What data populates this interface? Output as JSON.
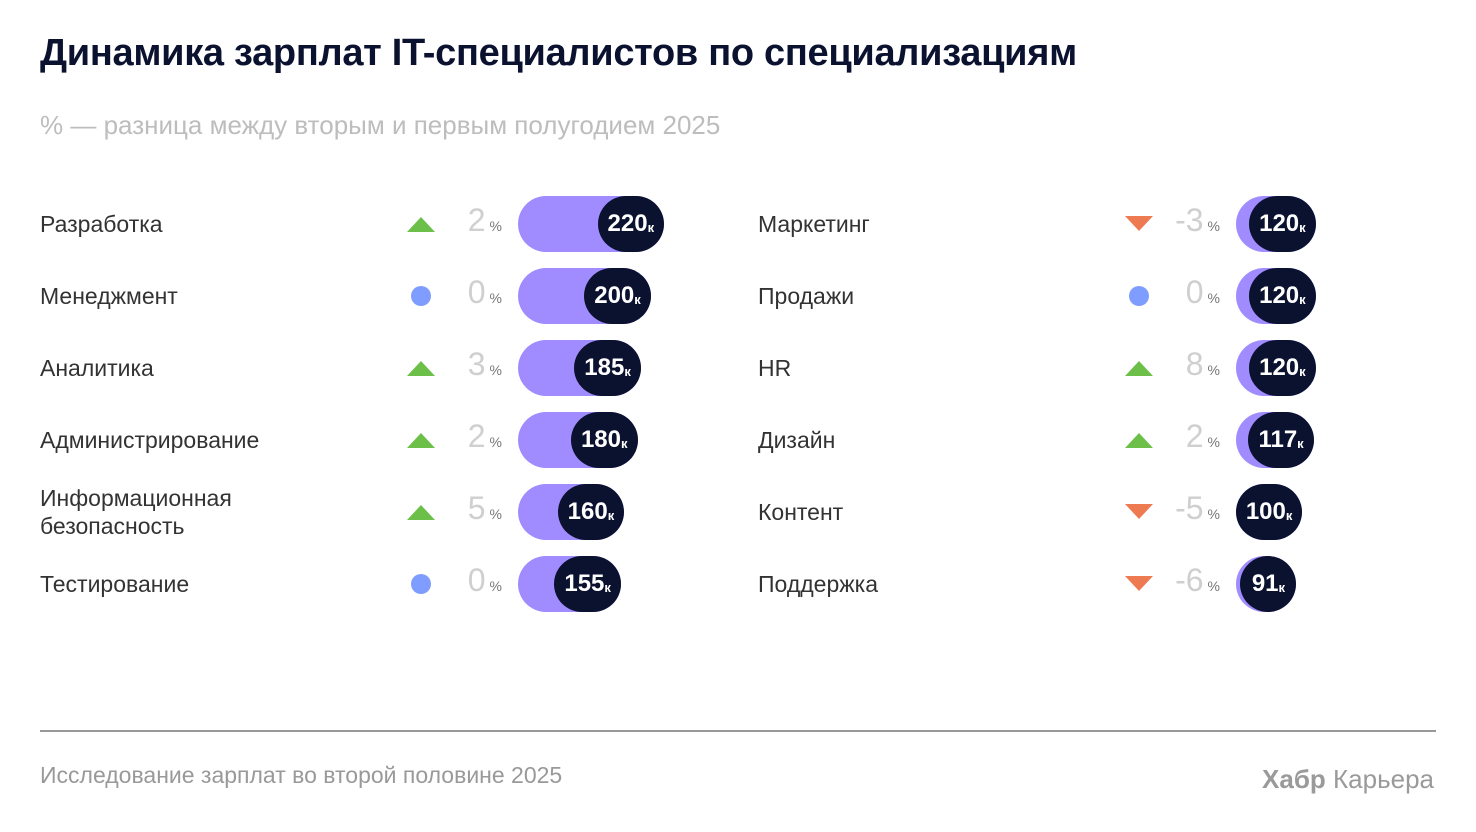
{
  "title": "Динамика зарплат IT-специалистов по специализациям",
  "subtitle": "% — разница между вторым и первым полугодием 2025",
  "footer": "Исследование зарплат во второй половине 2025",
  "logo": {
    "bold": "Хабр",
    "regular": "Карьера"
  },
  "colors": {
    "bar": "#a08bff",
    "pill": "#0b1230",
    "up": "#6cc04a",
    "down": "#ee7a52",
    "flat": "#7f9cff"
  },
  "chart_data": {
    "type": "bar",
    "value_suffix": "к",
    "pct_suffix": "%",
    "columns": [
      [
        {
          "name": "Разработка",
          "change": 2,
          "trend": "up",
          "value": 220
        },
        {
          "name": "Менеджмент",
          "change": 0,
          "trend": "flat",
          "value": 200
        },
        {
          "name": "Аналитика",
          "change": 3,
          "trend": "up",
          "value": 185
        },
        {
          "name": "Администрирование",
          "change": 2,
          "trend": "up",
          "value": 180
        },
        {
          "name": "Информационная безопасность",
          "change": 5,
          "trend": "up",
          "value": 160
        },
        {
          "name": "Тестирование",
          "change": 0,
          "trend": "flat",
          "value": 155
        }
      ],
      [
        {
          "name": "Маркетинг",
          "change": -3,
          "trend": "down",
          "value": 120
        },
        {
          "name": "Продажи",
          "change": 0,
          "trend": "flat",
          "value": 120
        },
        {
          "name": "HR",
          "change": 8,
          "trend": "up",
          "value": 120
        },
        {
          "name": "Дизайн",
          "change": 2,
          "trend": "up",
          "value": 117
        },
        {
          "name": "Контент",
          "change": -5,
          "trend": "down",
          "value": 100
        },
        {
          "name": "Поддержка",
          "change": -6,
          "trend": "down",
          "value": 91
        }
      ]
    ]
  }
}
